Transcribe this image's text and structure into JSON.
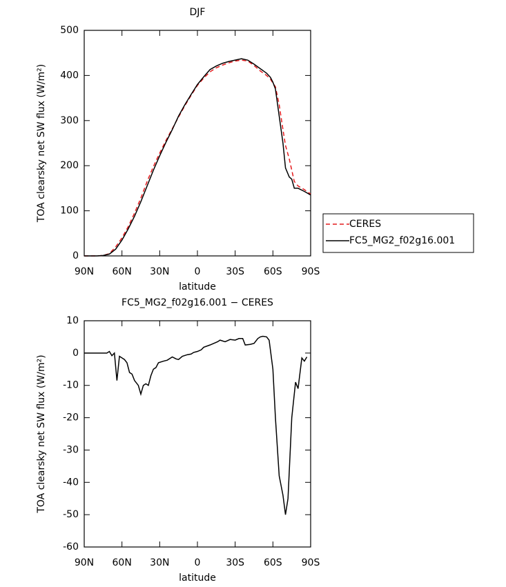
{
  "chart_data": [
    {
      "type": "line",
      "title": "DJF",
      "xlabel": "latitude",
      "ylabel": "TOA clearsky net SW flux (W/m²)",
      "x": [
        90,
        85,
        80,
        75,
        70,
        65,
        60,
        55,
        50,
        45,
        40,
        35,
        30,
        25,
        20,
        15,
        10,
        5,
        0,
        -5,
        -10,
        -15,
        -20,
        -25,
        -30,
        -35,
        -40,
        -45,
        -50,
        -55,
        -58,
        -60,
        -62,
        -65,
        -68,
        -70,
        -73,
        -75,
        -77,
        -80,
        -85,
        -90
      ],
      "series": [
        {
          "name": "CERES",
          "color": "#e41a1c",
          "linestyle": "dashed",
          "values": [
            0,
            0,
            0,
            1,
            5,
            20,
            40,
            65,
            95,
            128,
            165,
            198,
            228,
            256,
            282,
            308,
            333,
            356,
            378,
            394,
            408,
            417,
            423,
            428,
            432,
            434,
            432,
            422,
            410,
            400,
            392,
            383,
            375,
            335,
            280,
            245,
            215,
            190,
            165,
            155,
            147,
            137
          ]
        },
        {
          "name": "FC5_MG2_f02g16.001",
          "color": "#000000",
          "linestyle": "solid",
          "values": [
            0,
            0,
            0,
            1,
            4,
            15,
            35,
            60,
            88,
            120,
            155,
            190,
            222,
            252,
            280,
            310,
            335,
            358,
            380,
            397,
            413,
            421,
            427,
            431,
            434,
            437,
            434,
            425,
            415,
            405,
            396,
            385,
            370,
            310,
            250,
            195,
            175,
            170,
            150,
            150,
            143,
            135
          ]
        }
      ],
      "xlim": [
        90,
        -90
      ],
      "xticks": [
        {
          "value": 90,
          "label": "90N"
        },
        {
          "value": 60,
          "label": "60N"
        },
        {
          "value": 30,
          "label": "30N"
        },
        0,
        {
          "value": -30,
          "label": "30S"
        },
        {
          "value": -60,
          "label": "60S"
        },
        {
          "value": -90,
          "label": "90S"
        }
      ],
      "ylim": [
        0,
        500
      ],
      "yticks": [
        0,
        100,
        200,
        300,
        400,
        500
      ],
      "legend": "right"
    },
    {
      "type": "line",
      "title": "FC5_MG2_f02g16.001 − CERES",
      "xlabel": "latitude",
      "ylabel": "TOA clearsky net SW flux (W/m²)",
      "x": [
        90,
        80,
        72,
        70,
        68,
        66,
        64,
        62,
        58,
        56,
        54,
        52,
        50,
        47,
        45,
        43,
        41,
        39,
        37,
        35,
        33,
        31,
        27,
        24,
        20,
        17,
        15,
        12,
        8,
        5,
        3,
        0,
        -3,
        -5,
        -10,
        -13,
        -16,
        -18,
        -22,
        -26,
        -30,
        -33,
        -36,
        -38,
        -42,
        -45,
        -48,
        -50,
        -52,
        -55,
        -57,
        -60,
        -62,
        -65,
        -68,
        -70,
        -72,
        -75,
        -78,
        -80,
        -83,
        -85,
        -87
      ],
      "series": [
        {
          "name": "FC5_MG2_f02g16.001 − CERES",
          "color": "#000000",
          "linestyle": "solid",
          "values": [
            0,
            0,
            0,
            0.5,
            -0.8,
            0,
            -8.5,
            -1,
            -2,
            -3,
            -6,
            -6.5,
            -8.5,
            -10,
            -12.7,
            -10,
            -9.5,
            -10,
            -7,
            -5,
            -4.5,
            -3,
            -2.5,
            -2.2,
            -1.2,
            -1.8,
            -2,
            -1,
            -0.5,
            -0.3,
            0.2,
            0.5,
            1,
            1.8,
            2.5,
            3,
            3.5,
            4,
            3.5,
            4.2,
            4,
            4.5,
            4.5,
            2.5,
            2.7,
            3,
            4.5,
            5,
            5.2,
            5,
            4,
            -5,
            -20,
            -38,
            -44,
            -50,
            -45,
            -20,
            -9,
            -11,
            -1.5,
            -2.5,
            -1.2
          ]
        }
      ],
      "xlim": [
        90,
        -90
      ],
      "xticks": [
        {
          "value": 90,
          "label": "90N"
        },
        {
          "value": 60,
          "label": "60N"
        },
        {
          "value": 30,
          "label": "30N"
        },
        0,
        {
          "value": -30,
          "label": "30S"
        },
        {
          "value": -60,
          "label": "60S"
        },
        {
          "value": -90,
          "label": "90S"
        }
      ],
      "ylim": [
        -60,
        10
      ],
      "yticks": [
        -60,
        -50,
        -40,
        -30,
        -20,
        -10,
        0,
        10
      ]
    }
  ]
}
